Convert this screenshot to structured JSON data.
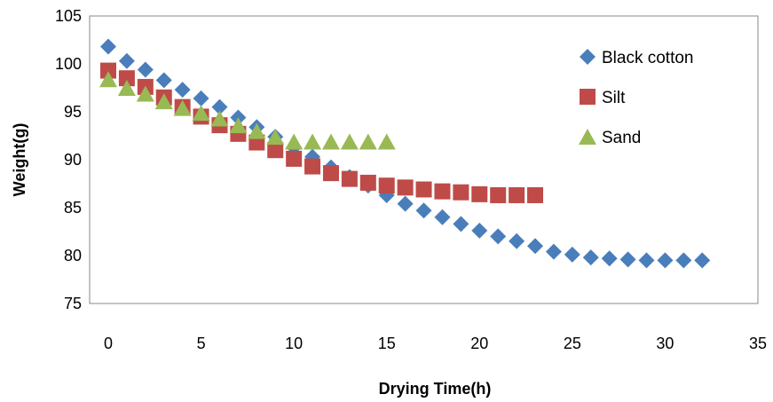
{
  "chart_data": {
    "type": "scatter",
    "title": "",
    "xlabel": "Drying Time(h)",
    "ylabel": "Weight(g)",
    "xlim": [
      0,
      35
    ],
    "ylim": [
      75,
      105
    ],
    "x_ticks": [
      0,
      5,
      10,
      15,
      20,
      25,
      30,
      35
    ],
    "y_ticks": [
      75,
      80,
      85,
      90,
      95,
      100,
      105
    ],
    "grid": false,
    "legend_position": "top-right",
    "series": [
      {
        "name": "Black cotton",
        "marker": "diamond",
        "color": "#4a7ebb",
        "x": [
          0,
          1,
          2,
          3,
          4,
          5,
          6,
          7,
          8,
          9,
          10,
          11,
          12,
          13,
          14,
          15,
          16,
          17,
          18,
          19,
          20,
          21,
          22,
          23,
          24,
          25,
          26,
          27,
          28,
          29,
          30,
          31,
          32
        ],
        "y": [
          101.8,
          100.3,
          99.4,
          98.3,
          97.3,
          96.4,
          95.5,
          94.4,
          93.4,
          92.4,
          91.3,
          90.3,
          89.2,
          88.2,
          87.3,
          86.3,
          85.4,
          84.7,
          84.0,
          83.3,
          82.6,
          82.0,
          81.5,
          81.0,
          80.4,
          80.1,
          79.8,
          79.7,
          79.6,
          79.5,
          79.5,
          79.5,
          79.5
        ]
      },
      {
        "name": "Silt",
        "marker": "square",
        "color": "#be4b48",
        "x": [
          0,
          1,
          2,
          3,
          4,
          5,
          6,
          7,
          8,
          9,
          10,
          11,
          12,
          13,
          14,
          15,
          16,
          17,
          18,
          19,
          20,
          21,
          22,
          23
        ],
        "y": [
          99.3,
          98.5,
          97.6,
          96.5,
          95.5,
          94.5,
          93.6,
          92.7,
          91.8,
          91.0,
          90.1,
          89.3,
          88.6,
          88.0,
          87.6,
          87.3,
          87.1,
          86.9,
          86.7,
          86.6,
          86.4,
          86.3,
          86.3,
          86.3
        ]
      },
      {
        "name": "Sand",
        "marker": "triangle",
        "color": "#98b954",
        "x": [
          0,
          1,
          2,
          3,
          4,
          5,
          6,
          7,
          8,
          9,
          10,
          11,
          12,
          13,
          14,
          15
        ],
        "y": [
          98.4,
          97.5,
          96.9,
          96.1,
          95.4,
          94.9,
          94.3,
          93.6,
          93.0,
          92.4,
          91.9,
          91.9,
          91.9,
          91.9,
          91.9,
          91.9
        ]
      }
    ]
  }
}
